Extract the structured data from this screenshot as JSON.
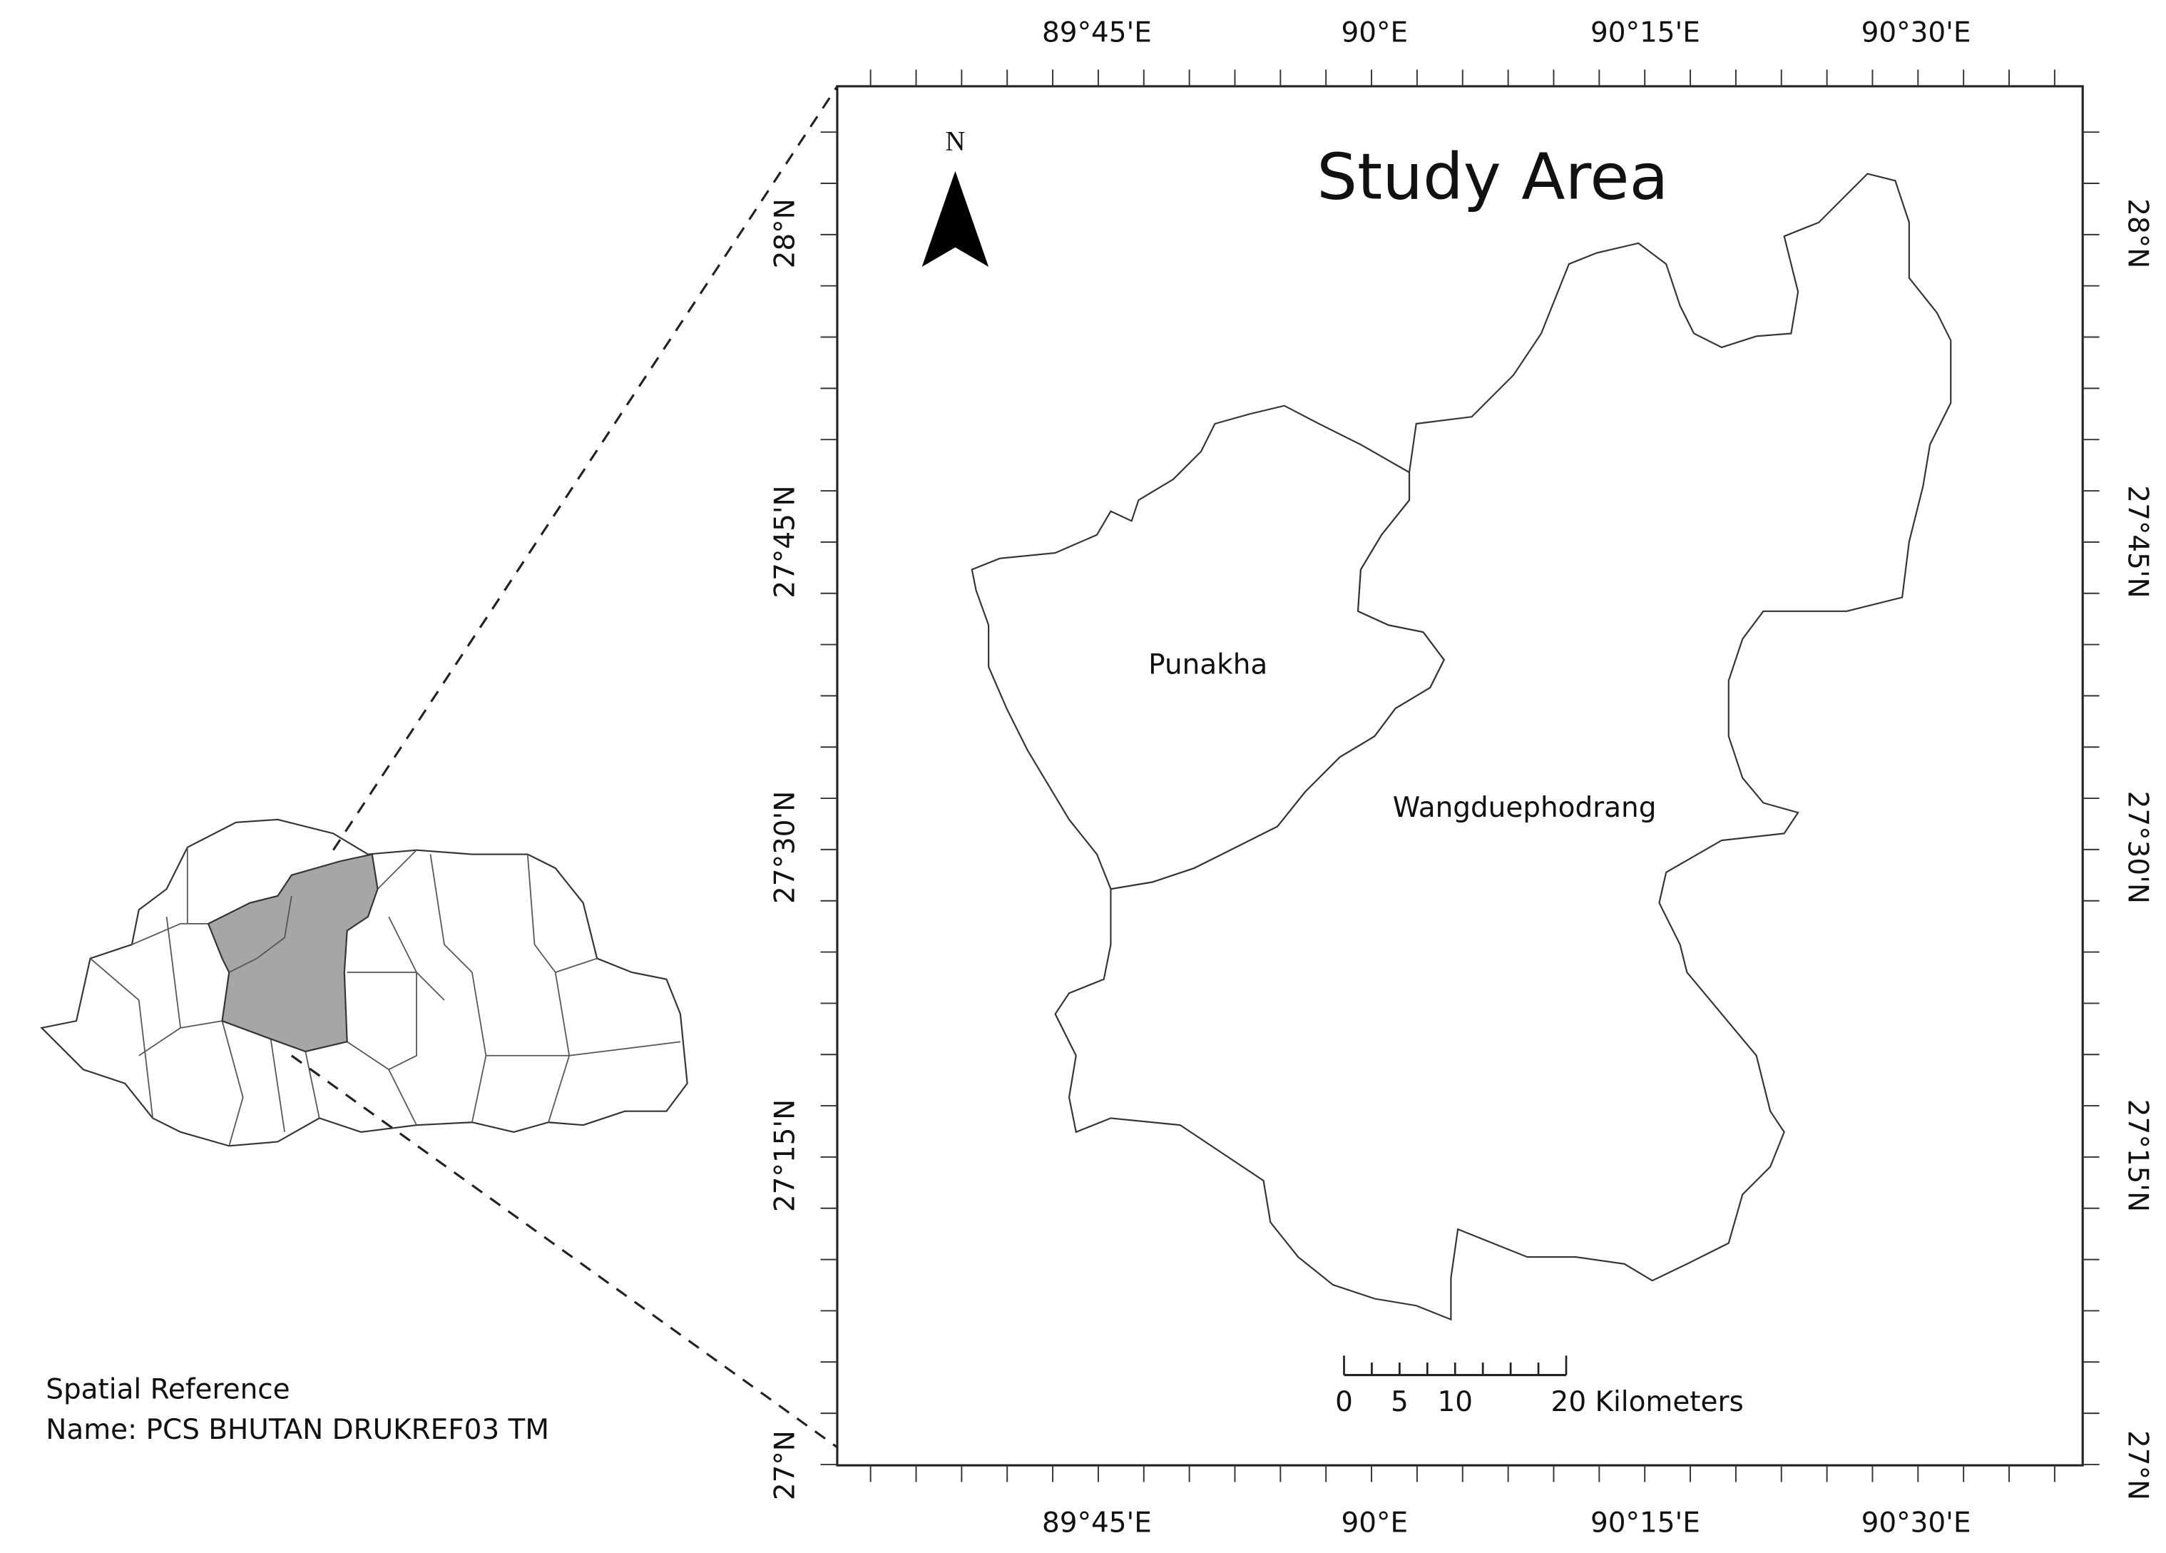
{
  "title": "Study Area",
  "north_arrow": {
    "label": "N"
  },
  "regions": [
    {
      "label": "Punakha"
    },
    {
      "label": "Wangduephodrang"
    }
  ],
  "axes": {
    "top_labels": [
      "89°45'E",
      "90°E",
      "90°15'E",
      "90°30'E"
    ],
    "bottom_labels": [
      "89°45'E",
      "90°E",
      "90°15'E",
      "90°30'E"
    ],
    "left_labels": [
      "28°N",
      "27°45'N",
      "27°30'N",
      "27°15'N",
      "27°N"
    ],
    "right_labels": [
      "28°N",
      "27°45'N",
      "27°30'N",
      "27°15'N",
      "27°N"
    ]
  },
  "scale_bar": {
    "labels": [
      "0",
      "5",
      "10",
      "20 Kilometers"
    ]
  },
  "spatial_reference": {
    "heading": "Spatial Reference",
    "name": "Name: PCS BHUTAN DRUKREF03 TM"
  }
}
